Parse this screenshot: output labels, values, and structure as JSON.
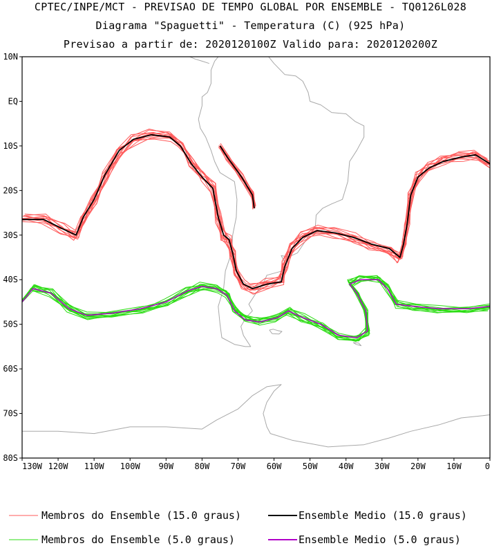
{
  "header": {
    "line1": "CPTEC/INPE/MCT - PREVISAO DE TEMPO GLOBAL POR ENSEMBLE - TQ0126L028",
    "line2": "Diagrama \"Spaguetti\" - Temperatura (C) (925 hPa)",
    "line3": "Previsao a partir de: 2020120100Z  Valido para: 2020120200Z"
  },
  "axes": {
    "lat_labels": [
      "10N",
      "EQ",
      "10S",
      "20S",
      "30S",
      "40S",
      "50S",
      "60S",
      "70S",
      "80S"
    ],
    "lon_labels": [
      "130W",
      "120W",
      "110W",
      "100W",
      "90W",
      "80W",
      "70W",
      "60W",
      "50W",
      "40W",
      "30W",
      "20W",
      "10W",
      "0"
    ]
  },
  "legend": {
    "items": [
      {
        "label": "Membros do Ensemble (15.0 graus)",
        "color": "#ff5a5a"
      },
      {
        "label": "Ensemble Medio (15.0 graus)",
        "color": "#000000"
      },
      {
        "label": "Membros do Ensemble (5.0 graus)",
        "color": "#2adc12"
      },
      {
        "label": "Ensemble Medio (5.0 graus)",
        "color": "#b000c8"
      }
    ]
  },
  "colors": {
    "coast": "#a8a8a8",
    "frame": "#000000"
  },
  "contours": {
    "iso15_mean": [
      [
        -130,
        -26.5
      ],
      [
        -124,
        -26.5
      ],
      [
        -119,
        -28.5
      ],
      [
        -115,
        -30
      ],
      [
        -113,
        -26
      ],
      [
        -110,
        -22
      ],
      [
        -107,
        -16.5
      ],
      [
        -103,
        -11
      ],
      [
        -99,
        -8.5
      ],
      [
        -94,
        -7.5
      ],
      [
        -89,
        -8
      ],
      [
        -86,
        -10
      ],
      [
        -83,
        -14
      ],
      [
        -80,
        -17
      ],
      [
        -77,
        -19.5
      ],
      [
        -75.5,
        -26
      ],
      [
        -74,
        -30
      ],
      [
        -72.5,
        -31
      ],
      [
        -71.5,
        -34
      ],
      [
        -70.5,
        -38
      ],
      [
        -68.5,
        -41
      ],
      [
        -66,
        -42
      ],
      [
        -62,
        -41
      ],
      [
        -58,
        -40.5
      ],
      [
        -57,
        -37
      ],
      [
        -55,
        -33
      ],
      [
        -52,
        -30.5
      ],
      [
        -48,
        -29
      ],
      [
        -43,
        -29.5
      ],
      [
        -38,
        -30.5
      ],
      [
        -33,
        -32
      ],
      [
        -28,
        -33
      ],
      [
        -25,
        -35
      ],
      [
        -24,
        -32
      ],
      [
        -23,
        -27.5
      ],
      [
        -22,
        -21
      ],
      [
        -20,
        -17
      ],
      [
        -17,
        -15
      ],
      [
        -13,
        -13.5
      ],
      [
        -8,
        -12.5
      ],
      [
        -4,
        -12
      ],
      [
        0,
        -14
      ]
    ],
    "iso15_inner": [
      [
        -65.5,
        -24
      ],
      [
        -66,
        -21
      ],
      [
        -69,
        -17
      ],
      [
        -73,
        -12.5
      ],
      [
        -75,
        -10
      ]
    ],
    "iso5_mean": [
      [
        -130,
        -45
      ],
      [
        -127,
        -42
      ],
      [
        -122,
        -43
      ],
      [
        -117,
        -46.5
      ],
      [
        -112,
        -48
      ],
      [
        -105,
        -47.5
      ],
      [
        -97,
        -46.5
      ],
      [
        -90,
        -45
      ],
      [
        -84,
        -42.5
      ],
      [
        -80,
        -41.5
      ],
      [
        -76,
        -42
      ],
      [
        -73,
        -43.5
      ],
      [
        -71,
        -47
      ],
      [
        -68,
        -49
      ],
      [
        -64,
        -49.5
      ],
      [
        -59,
        -48.5
      ],
      [
        -56,
        -47
      ],
      [
        -52,
        -48.5
      ],
      [
        -47,
        -50
      ],
      [
        -42,
        -52.5
      ],
      [
        -37,
        -53
      ],
      [
        -34,
        -51.5
      ],
      [
        -34.5,
        -47
      ],
      [
        -37,
        -43
      ],
      [
        -39,
        -41
      ],
      [
        -36,
        -40
      ],
      [
        -31,
        -40
      ],
      [
        -28.5,
        -42
      ],
      [
        -26,
        -45.5
      ],
      [
        -21,
        -46
      ],
      [
        -14,
        -46.5
      ],
      [
        -6,
        -46.5
      ],
      [
        0,
        -46
      ]
    ]
  },
  "coastline": {
    "south_america": [
      [
        -80,
        -1
      ],
      [
        -81,
        -4
      ],
      [
        -80.5,
        -6
      ],
      [
        -79,
        -8
      ],
      [
        -77.5,
        -11
      ],
      [
        -76.5,
        -13.5
      ],
      [
        -75,
        -16
      ],
      [
        -71,
        -18
      ],
      [
        -70.3,
        -22
      ],
      [
        -70.5,
        -26
      ],
      [
        -71.5,
        -30
      ],
      [
        -71.8,
        -34
      ],
      [
        -73.5,
        -38
      ],
      [
        -74,
        -42
      ],
      [
        -75.5,
        -46
      ],
      [
        -75,
        -50
      ],
      [
        -74.5,
        -53
      ],
      [
        -71,
        -54.5
      ],
      [
        -68,
        -55
      ],
      [
        -66.5,
        -55
      ],
      [
        -68.5,
        -52.5
      ],
      [
        -69.2,
        -50.5
      ],
      [
        -67.8,
        -48.5
      ],
      [
        -66,
        -47
      ],
      [
        -67,
        -45.5
      ],
      [
        -65,
        -43
      ],
      [
        -64,
        -42
      ],
      [
        -63,
        -41
      ],
      [
        -62,
        -39
      ],
      [
        -57.5,
        -38
      ],
      [
        -56.8,
        -36.5
      ],
      [
        -58,
        -34.6
      ],
      [
        -56,
        -34.9
      ],
      [
        -53.5,
        -34
      ],
      [
        -51,
        -31
      ],
      [
        -48.5,
        -28
      ],
      [
        -48.3,
        -25.5
      ],
      [
        -46.5,
        -24
      ],
      [
        -44,
        -23
      ],
      [
        -41,
        -22
      ],
      [
        -39.5,
        -18
      ],
      [
        -39,
        -13.5
      ],
      [
        -37,
        -11
      ],
      [
        -35,
        -8
      ],
      [
        -35,
        -5.5
      ],
      [
        -37.5,
        -4.5
      ],
      [
        -40,
        -2.8
      ],
      [
        -44,
        -2.5
      ],
      [
        -47,
        -0.8
      ],
      [
        -50,
        0
      ],
      [
        -50.5,
        2
      ],
      [
        -52,
        4.5
      ],
      [
        -54,
        5.7
      ],
      [
        -57,
        6
      ],
      [
        -60,
        8.5
      ],
      [
        -62,
        10.5
      ],
      [
        -66,
        10.5
      ],
      [
        -69,
        11.5
      ],
      [
        -71.5,
        12.3
      ],
      [
        -72,
        11
      ],
      [
        -75,
        10.5
      ],
      [
        -76.5,
        9
      ],
      [
        -77.5,
        7
      ],
      [
        -77.5,
        4
      ],
      [
        -78.5,
        2
      ],
      [
        -80,
        1
      ],
      [
        -80,
        -1
      ]
    ],
    "central_america": [
      [
        -78,
        8.5
      ],
      [
        -80,
        9
      ],
      [
        -82,
        9.5
      ],
      [
        -84,
        10.2
      ],
      [
        -86,
        12
      ],
      [
        -88,
        13.3
      ]
    ],
    "antarctic_coast": [
      [
        -130,
        -74
      ],
      [
        -120,
        -74
      ],
      [
        -110,
        -74.5
      ],
      [
        -100,
        -73
      ],
      [
        -90,
        -73
      ],
      [
        -80,
        -73.5
      ],
      [
        -76,
        -71.5
      ],
      [
        -70,
        -69
      ],
      [
        -66,
        -66
      ],
      [
        -62,
        -64
      ],
      [
        -58,
        -63.5
      ],
      [
        -60,
        -65
      ],
      [
        -62,
        -67.5
      ],
      [
        -63,
        -70
      ],
      [
        -62,
        -73
      ],
      [
        -61,
        -74.5
      ],
      [
        -55,
        -76
      ],
      [
        -45,
        -77.5
      ],
      [
        -35,
        -77
      ],
      [
        -28,
        -75.5
      ],
      [
        -22,
        -74
      ],
      [
        -14,
        -72.5
      ],
      [
        -8,
        -71
      ],
      [
        -2,
        -70.5
      ],
      [
        0,
        -70.3
      ]
    ],
    "falklands": [
      [
        -61.3,
        -51.3
      ],
      [
        -60.2,
        -51.1
      ],
      [
        -59,
        -51.4
      ],
      [
        -57.8,
        -51.6
      ],
      [
        -58.6,
        -52.2
      ],
      [
        -60.5,
        -52.1
      ],
      [
        -61.3,
        -51.3
      ]
    ],
    "south_georgia": [
      [
        -38,
        -54.1
      ],
      [
        -36.5,
        -54.2
      ],
      [
        -35.8,
        -54.8
      ],
      [
        -37.2,
        -54.5
      ],
      [
        -38,
        -54.1
      ]
    ]
  }
}
